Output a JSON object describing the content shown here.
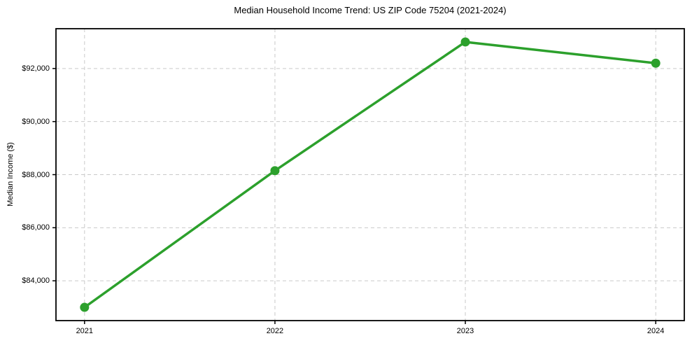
{
  "chart_data": {
    "type": "line",
    "title": "Median Household Income Trend: US ZIP Code 75204 (2021-2024)",
    "ylabel": "Median Income ($)",
    "xlabel": "",
    "x": [
      2021,
      2022,
      2023,
      2024
    ],
    "xtick_labels": [
      "2021",
      "2022",
      "2023",
      "2024"
    ],
    "series": [
      {
        "values": [
          83000,
          88150,
          93000,
          92200
        ],
        "color": "#2ca02c",
        "marker": "circle",
        "line_width": 3.5,
        "marker_radius": 6.5
      }
    ],
    "ytick_values": [
      84000,
      86000,
      88000,
      90000,
      92000
    ],
    "ytick_labels": [
      "$84,000",
      "$86,000",
      "$88,000",
      "$90,000",
      "$92,000"
    ],
    "ylim": [
      82500,
      93500
    ],
    "xlim": [
      2020.85,
      2024.15
    ],
    "grid": true,
    "grid_style": "dashed",
    "legend": false,
    "colors": {
      "line": "#2ca02c",
      "grid": "#c9c9c9",
      "axis": "#000000",
      "background": "#ffffff"
    }
  }
}
